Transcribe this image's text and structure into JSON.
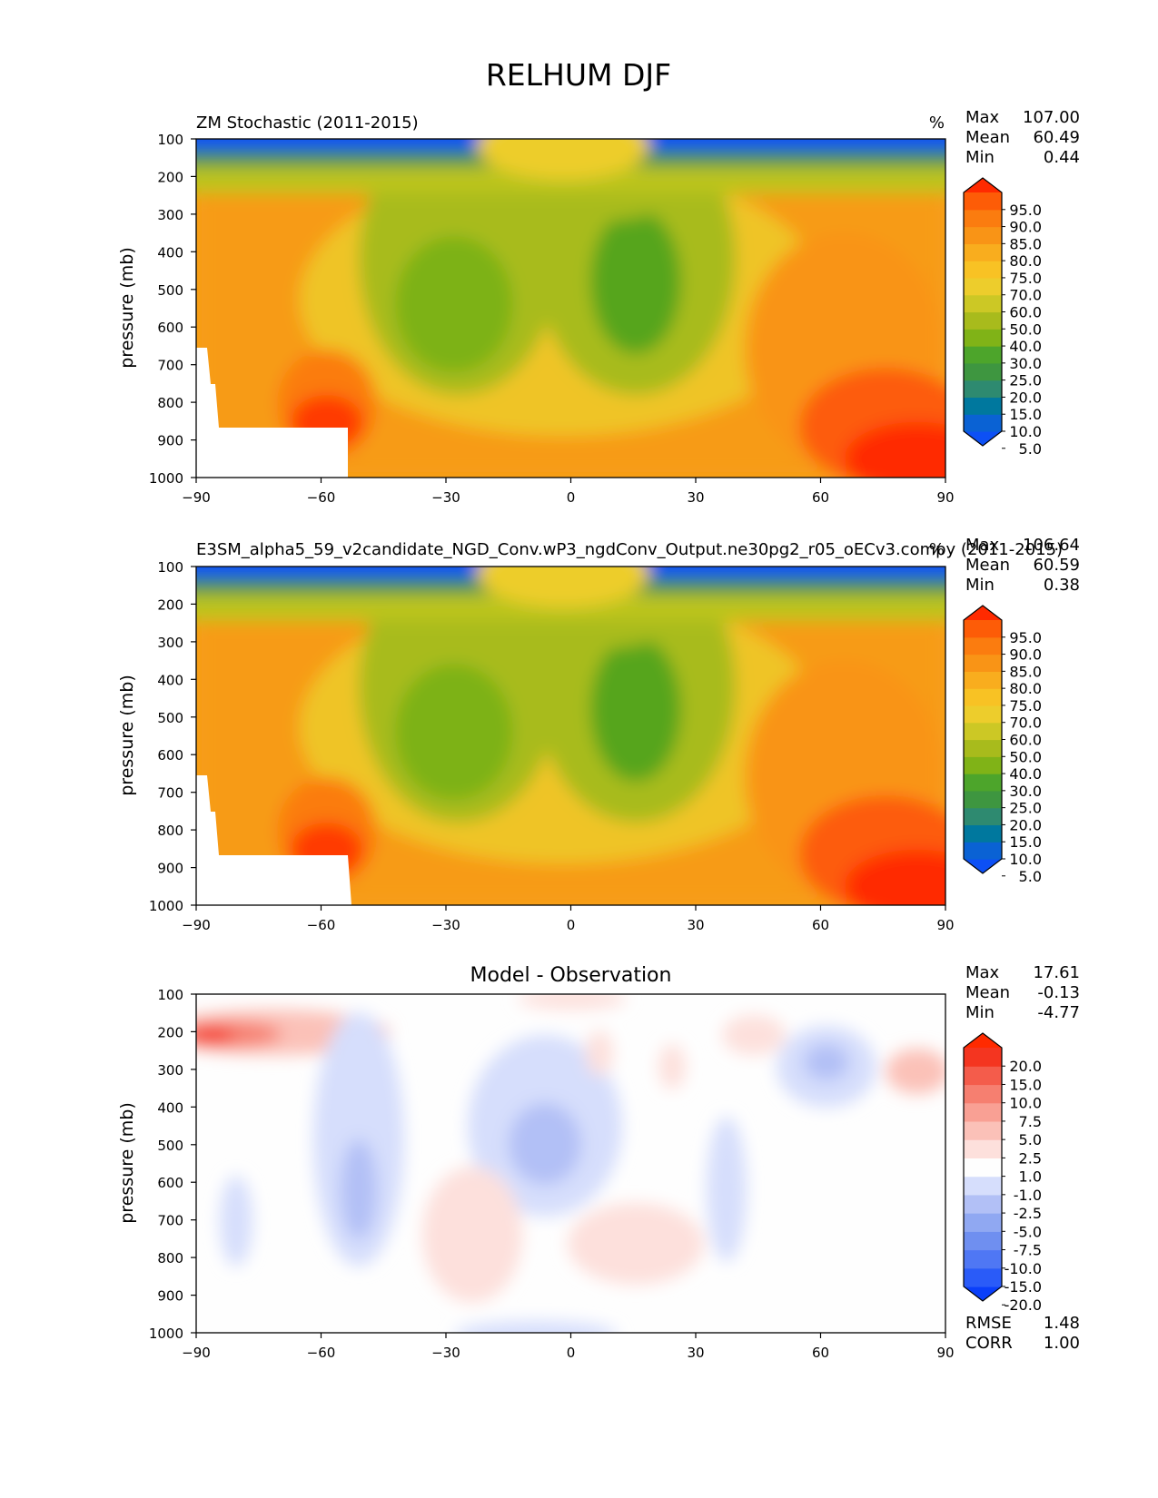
{
  "figure": {
    "title": "RELHUM DJF"
  },
  "chart_data": [
    {
      "type": "contourf",
      "title": "ZM Stochastic (2011-2015)",
      "units": "%",
      "xlabel": "",
      "ylabel": "pressure (mb)",
      "xlim": [
        -90,
        90
      ],
      "ylim": [
        1000,
        100
      ],
      "xticks": [
        "−90",
        "−60",
        "−30",
        "0",
        "30",
        "60",
        "90"
      ],
      "yticks": [
        "100",
        "200",
        "300",
        "400",
        "500",
        "600",
        "700",
        "800",
        "900",
        "1000"
      ],
      "stats": {
        "max_label": "Max",
        "max": "107.00",
        "mean_label": "Mean",
        "mean": "60.49",
        "min_label": "Min",
        "min": "0.44"
      },
      "colorbar_labels": [
        "95.0",
        "90.0",
        "85.0",
        "80.0",
        "75.0",
        "70.0",
        "60.0",
        "50.0",
        "40.0",
        "30.0",
        "25.0",
        "20.0",
        "15.0",
        "10.0",
        "5.0"
      ],
      "colorbar_colors": [
        "#0d50f5",
        "#0a62d4",
        "#00789e",
        "#2e8a70",
        "#3e9640",
        "#4da52b",
        "#80b317",
        "#a8bb1c",
        "#ccc825",
        "#edcd2c",
        "#f8c224",
        "#f9ad1e",
        "#f99416",
        "#fb7c0f",
        "#fd5c07",
        "#ff2a00"
      ]
    },
    {
      "type": "contourf",
      "title": "E3SM_alpha5_59_v2candidate_NGD_Conv.wP3_ngdConv_Output.ne30pg2_r05_oECv3.compy (2011-2015)",
      "units": "%",
      "xlabel": "",
      "ylabel": "pressure (mb)",
      "xlim": [
        -90,
        90
      ],
      "ylim": [
        1000,
        100
      ],
      "xticks": [
        "−90",
        "−60",
        "−30",
        "0",
        "30",
        "60",
        "90"
      ],
      "yticks": [
        "100",
        "200",
        "300",
        "400",
        "500",
        "600",
        "700",
        "800",
        "900",
        "1000"
      ],
      "stats": {
        "max_label": "Max",
        "max": "106.64",
        "mean_label": "Mean",
        "mean": "60.59",
        "min_label": "Min",
        "min": "0.38"
      },
      "colorbar_labels": [
        "95.0",
        "90.0",
        "85.0",
        "80.0",
        "75.0",
        "70.0",
        "60.0",
        "50.0",
        "40.0",
        "30.0",
        "25.0",
        "20.0",
        "15.0",
        "10.0",
        "5.0"
      ],
      "colorbar_colors": [
        "#0d50f5",
        "#0a62d4",
        "#00789e",
        "#2e8a70",
        "#3e9640",
        "#4da52b",
        "#80b317",
        "#a8bb1c",
        "#ccc825",
        "#edcd2c",
        "#f8c224",
        "#f9ad1e",
        "#f99416",
        "#fb7c0f",
        "#fd5c07",
        "#ff2a00"
      ]
    },
    {
      "type": "contourf",
      "title": "Model - Observation",
      "xlabel": "",
      "ylabel": "pressure (mb)",
      "xlim": [
        -90,
        90
      ],
      "ylim": [
        1000,
        100
      ],
      "xticks": [
        "−90",
        "−60",
        "−30",
        "0",
        "30",
        "60",
        "90"
      ],
      "yticks": [
        "100",
        "200",
        "300",
        "400",
        "500",
        "600",
        "700",
        "800",
        "900",
        "1000"
      ],
      "stats": {
        "max_label": "Max",
        "max": "17.61",
        "mean_label": "Mean",
        "mean": "-0.13",
        "min_label": "Min",
        "min": "-4.77",
        "rmse_label": "RMSE",
        "rmse": "1.48",
        "corr_label": "CORR",
        "corr": "1.00"
      },
      "colorbar_labels": [
        "20.0",
        "15.0",
        "10.0",
        "7.5",
        "5.0",
        "2.5",
        "1.0",
        "-1.0",
        "-2.5",
        "-5.0",
        "-7.5",
        "-10.0",
        "-15.0",
        "-20.0"
      ],
      "colorbar_colors": [
        "#0a3ffa",
        "#2a5bf8",
        "#4f77f4",
        "#6f8ff0",
        "#90a8f2",
        "#b2c0f6",
        "#d6defc",
        "#fefefe",
        "#fde0dc",
        "#fbc1b8",
        "#f9a094",
        "#f67f70",
        "#f45c4b",
        "#f43520",
        "#ff2a00"
      ]
    }
  ]
}
